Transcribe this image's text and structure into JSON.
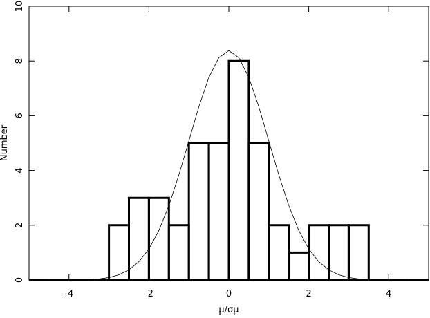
{
  "chart_data": {
    "type": "histogram",
    "xlabel": "μ/σμ",
    "ylabel": "Number",
    "bins": [
      -5,
      -4.5,
      -4,
      -3.5,
      -3,
      -2.5,
      -2,
      -1.5,
      -1,
      -0.5,
      0,
      0.5,
      1,
      1.5,
      2,
      2.5,
      3,
      3.5,
      4,
      4.5,
      5
    ],
    "values": [
      0,
      0,
      0,
      0,
      2,
      3,
      3,
      2,
      5,
      5,
      8,
      5,
      2,
      1,
      2,
      2,
      2,
      0,
      0,
      0
    ],
    "color": "#000000",
    "curve": {
      "x": [
        -5,
        -4.75,
        -4.5,
        -4.25,
        -4,
        -3.75,
        -3.5,
        -3.25,
        -3,
        -2.75,
        -2.5,
        -2.25,
        -2,
        -1.75,
        -1.5,
        -1.25,
        -1,
        -0.75,
        -0.5,
        -0.25,
        0,
        0.25,
        0.5,
        0.75,
        1,
        1.25,
        1.5,
        1.75,
        2,
        2.25,
        2.5,
        2.75,
        3,
        3.25,
        3.5,
        3.75,
        4,
        4.25,
        4.5,
        4.75,
        5
      ],
      "y": [
        0,
        0,
        0,
        0,
        0,
        0.01,
        0.02,
        0.04,
        0.09,
        0.19,
        0.37,
        0.67,
        1.13,
        1.81,
        2.72,
        3.84,
        5.08,
        6.33,
        7.4,
        8.12,
        8.38,
        8.12,
        7.4,
        6.33,
        5.08,
        3.84,
        2.72,
        1.81,
        1.13,
        0.67,
        0.37,
        0.19,
        0.09,
        0.04,
        0.02,
        0.01,
        0,
        0,
        0,
        0,
        0
      ]
    },
    "xlim": [
      -5,
      5
    ],
    "ylim": [
      0,
      10
    ],
    "xticks": [
      -4,
      -2,
      0,
      2,
      4
    ],
    "yticks": [
      0,
      2,
      4,
      6,
      8,
      10
    ]
  }
}
